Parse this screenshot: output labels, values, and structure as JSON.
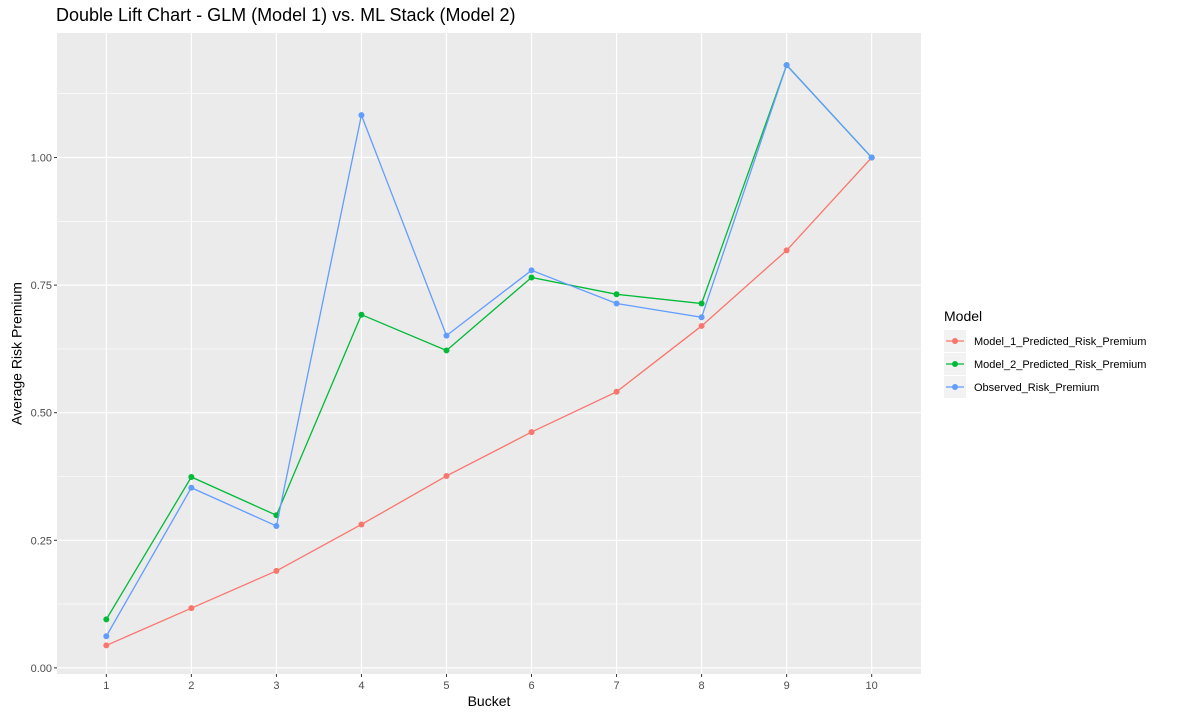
{
  "chart_data": {
    "type": "line",
    "title": "Double Lift Chart - GLM (Model 1) vs. ML Stack (Model 2)",
    "xlabel": "Bucket",
    "ylabel": "Average Risk Premium",
    "x": [
      1,
      2,
      3,
      4,
      5,
      6,
      7,
      8,
      9,
      10
    ],
    "x_tick_labels": [
      "1",
      "2",
      "3",
      "4",
      "5",
      "6",
      "7",
      "8",
      "9",
      "10"
    ],
    "xlim": [
      0.42,
      10.58
    ],
    "ylim": [
      -0.012,
      1.244
    ],
    "y_ticks": [
      0.0,
      0.25,
      0.5,
      0.75,
      1.0
    ],
    "y_tick_labels": [
      "0.00",
      "0.25",
      "0.50",
      "0.75",
      "1.00"
    ],
    "grid": true,
    "legend": {
      "title": "Model",
      "position": "right"
    },
    "series": [
      {
        "name": "Model_1_Predicted_Risk_Premium",
        "color": "#F8766D",
        "values": [
          0.044,
          0.117,
          0.19,
          0.281,
          0.376,
          0.462,
          0.541,
          0.67,
          0.818,
          1.0
        ]
      },
      {
        "name": "Model_2_Predicted_Risk_Premium",
        "color": "#00BA38",
        "values": [
          0.095,
          0.374,
          0.299,
          0.692,
          0.622,
          0.765,
          0.732,
          0.714,
          1.181,
          1.0
        ]
      },
      {
        "name": "Observed_Risk_Premium",
        "color": "#619CFF",
        "values": [
          0.062,
          0.353,
          0.278,
          1.083,
          0.651,
          0.779,
          0.714,
          0.687,
          1.181,
          1.0
        ]
      }
    ]
  }
}
